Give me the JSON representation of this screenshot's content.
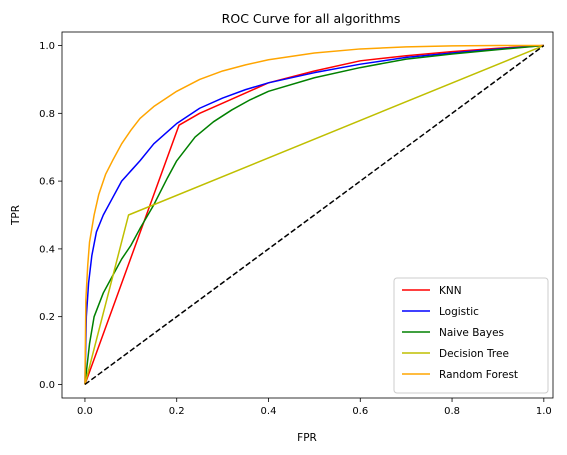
{
  "chart_data": {
    "type": "line",
    "title": "ROC Curve for all algorithms",
    "xlabel": "FPR",
    "ylabel": "TPR",
    "xlim": [
      -0.05,
      1.02
    ],
    "ylim": [
      -0.04,
      1.04
    ],
    "xticks": [
      0.0,
      0.2,
      0.4,
      0.6,
      0.8,
      1.0
    ],
    "yticks": [
      0.0,
      0.2,
      0.4,
      0.6,
      0.8,
      1.0
    ],
    "xtick_labels": [
      "0.0",
      "0.2",
      "0.4",
      "0.6",
      "0.8",
      "1.0"
    ],
    "ytick_labels": [
      "0.0",
      "0.2",
      "0.4",
      "0.6",
      "0.8",
      "1.0"
    ],
    "grid": false,
    "legend_position": "bottom-right",
    "series": [
      {
        "name": "KNN",
        "color": "#ff0000",
        "points": [
          [
            0.0,
            0.0
          ],
          [
            0.205,
            0.765
          ],
          [
            0.25,
            0.8
          ],
          [
            0.3,
            0.83
          ],
          [
            0.4,
            0.89
          ],
          [
            0.5,
            0.925
          ],
          [
            0.6,
            0.955
          ],
          [
            0.7,
            0.97
          ],
          [
            0.8,
            0.982
          ],
          [
            0.9,
            0.992
          ],
          [
            1.0,
            1.0
          ]
        ]
      },
      {
        "name": "Logistic",
        "color": "#0000ff",
        "points": [
          [
            0.0,
            0.0
          ],
          [
            0.003,
            0.2
          ],
          [
            0.008,
            0.3
          ],
          [
            0.015,
            0.38
          ],
          [
            0.025,
            0.45
          ],
          [
            0.04,
            0.5
          ],
          [
            0.06,
            0.55
          ],
          [
            0.08,
            0.6
          ],
          [
            0.1,
            0.63
          ],
          [
            0.12,
            0.66
          ],
          [
            0.15,
            0.71
          ],
          [
            0.2,
            0.77
          ],
          [
            0.25,
            0.815
          ],
          [
            0.3,
            0.845
          ],
          [
            0.35,
            0.87
          ],
          [
            0.4,
            0.89
          ],
          [
            0.5,
            0.92
          ],
          [
            0.6,
            0.945
          ],
          [
            0.7,
            0.965
          ],
          [
            0.8,
            0.978
          ],
          [
            0.9,
            0.99
          ],
          [
            1.0,
            1.0
          ]
        ]
      },
      {
        "name": "Naive Bayes",
        "color": "#008000",
        "points": [
          [
            0.0,
            0.0
          ],
          [
            0.01,
            0.12
          ],
          [
            0.02,
            0.2
          ],
          [
            0.04,
            0.27
          ],
          [
            0.06,
            0.32
          ],
          [
            0.08,
            0.37
          ],
          [
            0.1,
            0.41
          ],
          [
            0.12,
            0.46
          ],
          [
            0.15,
            0.53
          ],
          [
            0.18,
            0.61
          ],
          [
            0.2,
            0.66
          ],
          [
            0.24,
            0.73
          ],
          [
            0.28,
            0.775
          ],
          [
            0.32,
            0.81
          ],
          [
            0.36,
            0.84
          ],
          [
            0.4,
            0.865
          ],
          [
            0.5,
            0.905
          ],
          [
            0.6,
            0.935
          ],
          [
            0.7,
            0.96
          ],
          [
            0.8,
            0.975
          ],
          [
            0.9,
            0.988
          ],
          [
            1.0,
            1.0
          ]
        ]
      },
      {
        "name": "Decision Tree",
        "color": "#bfbf00",
        "points": [
          [
            0.0,
            0.0
          ],
          [
            0.095,
            0.5
          ],
          [
            1.0,
            1.0
          ]
        ]
      },
      {
        "name": "Random Forest",
        "color": "#ffa500",
        "points": [
          [
            0.0,
            0.0
          ],
          [
            0.002,
            0.25
          ],
          [
            0.006,
            0.35
          ],
          [
            0.01,
            0.42
          ],
          [
            0.02,
            0.5
          ],
          [
            0.03,
            0.56
          ],
          [
            0.045,
            0.62
          ],
          [
            0.06,
            0.66
          ],
          [
            0.08,
            0.71
          ],
          [
            0.1,
            0.75
          ],
          [
            0.12,
            0.785
          ],
          [
            0.15,
            0.82
          ],
          [
            0.2,
            0.865
          ],
          [
            0.25,
            0.9
          ],
          [
            0.3,
            0.925
          ],
          [
            0.35,
            0.943
          ],
          [
            0.4,
            0.958
          ],
          [
            0.5,
            0.978
          ],
          [
            0.6,
            0.99
          ],
          [
            0.7,
            0.996
          ],
          [
            0.8,
            0.999
          ],
          [
            0.9,
            1.0
          ],
          [
            1.0,
            1.0
          ]
        ]
      }
    ],
    "reference_line": {
      "style": "dashed",
      "color": "#000000",
      "points": [
        [
          0.0,
          0.0
        ],
        [
          1.0,
          1.0
        ]
      ]
    }
  }
}
